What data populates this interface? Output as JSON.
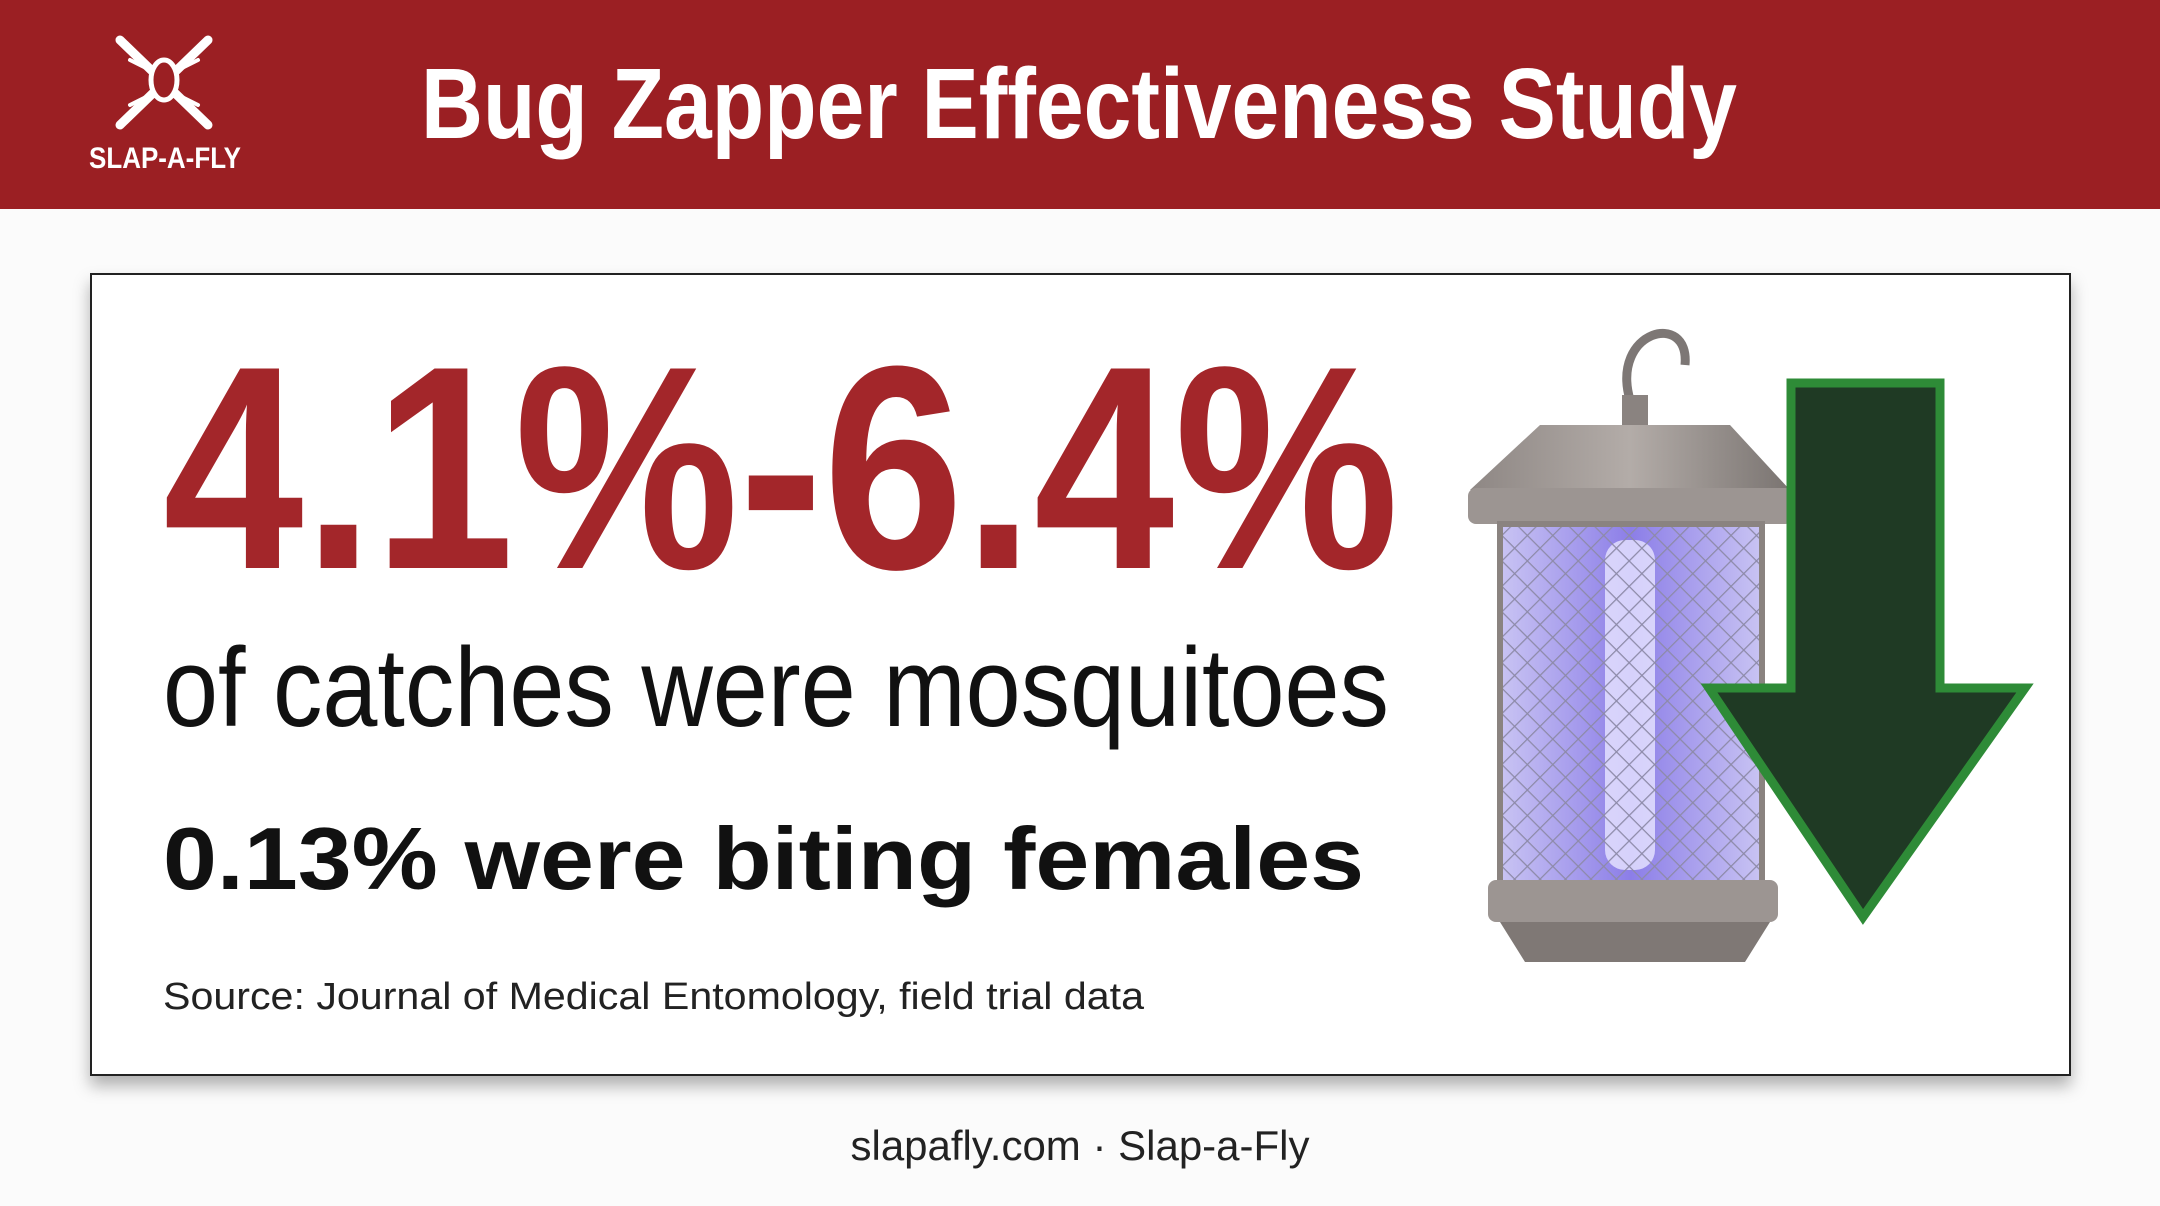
{
  "header": {
    "logo_text": "SLAP-A-FLY",
    "title": "Bug Zapper Effectiveness Study"
  },
  "card": {
    "headline": "4.1%-6.4%",
    "subhead": "of catches were mosquitoes",
    "stat": "0.13% were biting females",
    "source": "Source: Journal of Medical Entomology, field trial data"
  },
  "footer": "slapafly.com · Slap-a-Fly"
}
